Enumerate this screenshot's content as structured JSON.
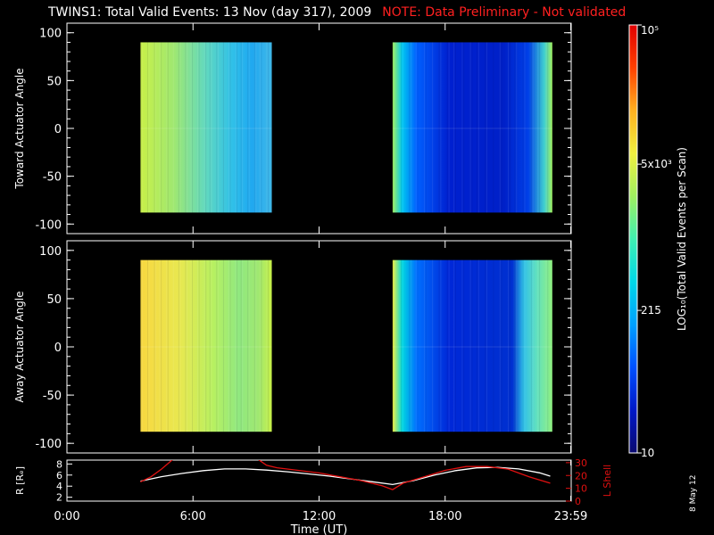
{
  "header": {
    "title": "TWINS1: Total Valid Events: 13 Nov (day 317), 2009",
    "note": "NOTE: Data Preliminary - Not validated"
  },
  "footer": {
    "date_stamp": "8 May 12"
  },
  "colors": {
    "background": "#000000",
    "text": "#ffffff",
    "note_red": "#ff2020",
    "lshell_red": "#e01010",
    "colormap": [
      "#0a0a70",
      "#0018c8",
      "#0050ff",
      "#00a0ff",
      "#00d8e8",
      "#40f0b0",
      "#a0f060",
      "#f0f040",
      "#ffb020",
      "#ff4000",
      "#e00000"
    ]
  },
  "chart_data": [
    {
      "type": "heatmap",
      "title": "",
      "xlabel": "",
      "ylabel": "Toward Actuator Angle",
      "xlim": [
        0,
        24
      ],
      "ylim": [
        -110,
        110
      ],
      "yticks": [
        100,
        50,
        0,
        -50,
        -100
      ],
      "grid": false,
      "data_blocks": [
        {
          "x_start_hours": 3.5,
          "x_end_hours": 9.75,
          "y_range": [
            -88,
            90
          ],
          "dominant_level": "green-cyan"
        },
        {
          "x_start_hours": 15.5,
          "x_end_hours": 23.1,
          "y_range": [
            -88,
            90
          ],
          "dominant_level": "blue"
        }
      ]
    },
    {
      "type": "heatmap",
      "title": "",
      "xlabel": "",
      "ylabel": "Away Actuator Angle",
      "xlim": [
        0,
        24
      ],
      "ylim": [
        -110,
        110
      ],
      "yticks": [
        100,
        50,
        0,
        -50,
        -100
      ],
      "grid": false,
      "data_blocks": [
        {
          "x_start_hours": 3.5,
          "x_end_hours": 9.75,
          "y_range": [
            -88,
            90
          ],
          "dominant_level": "yellow-green"
        },
        {
          "x_start_hours": 15.5,
          "x_end_hours": 23.1,
          "y_range": [
            -88,
            90
          ],
          "dominant_level": "blue"
        }
      ]
    },
    {
      "type": "line",
      "title": "",
      "xlabel": "Time (UT)",
      "ylabel": "R [Rₑ]",
      "y2label": "L Shell",
      "xlim": [
        0,
        24
      ],
      "ylim": [
        1.3,
        8.7
      ],
      "y2lim": [
        0,
        32
      ],
      "xtick_labels": [
        "0:00",
        "6:00",
        "12:00",
        "18:00",
        "23:59"
      ],
      "xtick_values": [
        0,
        6,
        12,
        18,
        23.98
      ],
      "yticks": [
        2,
        4,
        6,
        8
      ],
      "y2ticks": [
        0,
        10,
        20,
        30
      ],
      "series": [
        {
          "axis": "left",
          "color": "white",
          "x": [
            3.5,
            4.5,
            5.5,
            6.5,
            7.5,
            8.5,
            9.5,
            10.5,
            11.5,
            12.5,
            13.5,
            14.5,
            15.5,
            16.5,
            17.5,
            18.5,
            19.5,
            20.5,
            21.5,
            22.5,
            23.0
          ],
          "y": [
            4.9,
            5.7,
            6.3,
            6.8,
            7.1,
            7.1,
            6.9,
            6.6,
            6.2,
            5.8,
            5.3,
            4.8,
            4.3,
            5.0,
            6.0,
            6.8,
            7.3,
            7.4,
            7.1,
            6.4,
            5.8
          ]
        },
        {
          "axis": "right",
          "color": "red",
          "x": [
            3.5,
            4.0,
            4.5,
            5.0,
            5.05,
            9.1,
            9.15,
            9.5,
            10.0,
            11.0,
            12.0,
            13.0,
            14.0,
            15.0,
            15.5,
            16.0,
            17.0,
            18.0,
            19.0,
            20.0,
            21.0,
            22.0,
            23.0
          ],
          "y": [
            15,
            19,
            25,
            32,
            33,
            33,
            32,
            28,
            26,
            24,
            22,
            19,
            16,
            12,
            9,
            14,
            19,
            24,
            27,
            27,
            25,
            19,
            14
          ]
        }
      ]
    }
  ],
  "colorbar": {
    "label": "LOG₁₀(Total Valid Events per Scan)",
    "scale": "log",
    "range": [
      10,
      100000
    ],
    "tick_labels": [
      "10⁵",
      "5x10³",
      "215",
      "10"
    ],
    "tick_values": [
      100000,
      5000,
      215,
      10
    ]
  }
}
